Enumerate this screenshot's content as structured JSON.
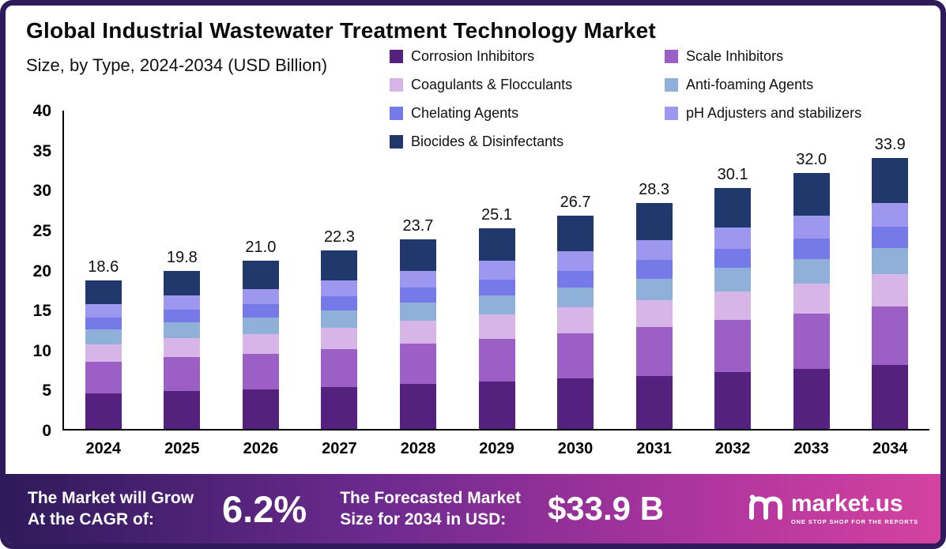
{
  "title": "Global Industrial Wastewater Treatment Technology Market",
  "subtitle": "Size, by Type, 2024-2034 (USD Billion)",
  "chart_data": {
    "type": "bar",
    "stacked": true,
    "title": "Global Industrial Wastewater Treatment Technology Market Size, by Type, 2024-2034 (USD Billion)",
    "categories": [
      "2024",
      "2025",
      "2026",
      "2027",
      "2028",
      "2029",
      "2030",
      "2031",
      "2032",
      "2033",
      "2034"
    ],
    "totals": [
      "18.6",
      "19.8",
      "21.0",
      "22.3",
      "23.7",
      "25.1",
      "26.7",
      "28.3",
      "30.1",
      "32.0",
      "33.9"
    ],
    "series": [
      {
        "name": "Corrosion Inhibitors",
        "color": "#54217e",
        "values": [
          4.4,
          4.7,
          4.9,
          5.2,
          5.6,
          5.9,
          6.3,
          6.6,
          7.1,
          7.5,
          8.0
        ]
      },
      {
        "name": "Scale Inhibitors",
        "color": "#9c5fc6",
        "values": [
          4.0,
          4.3,
          4.5,
          4.8,
          5.1,
          5.4,
          5.7,
          6.1,
          6.5,
          6.9,
          7.3
        ]
      },
      {
        "name": "Coagulants & Flocculants",
        "color": "#d7b5e6",
        "values": [
          2.2,
          2.4,
          2.5,
          2.7,
          2.8,
          3.0,
          3.2,
          3.4,
          3.6,
          3.8,
          4.1
        ]
      },
      {
        "name": "Anti-foaming Agents",
        "color": "#8fb1d9",
        "values": [
          1.8,
          1.9,
          2.0,
          2.1,
          2.3,
          2.4,
          2.5,
          2.7,
          2.9,
          3.0,
          3.2
        ]
      },
      {
        "name": "Chelating Agents",
        "color": "#7679e8",
        "values": [
          1.5,
          1.6,
          1.7,
          1.8,
          1.9,
          2.0,
          2.1,
          2.3,
          2.4,
          2.6,
          2.7
        ]
      },
      {
        "name": "pH Adjusters and stabilizers",
        "color": "#9e97f0",
        "values": [
          1.7,
          1.8,
          1.9,
          2.0,
          2.1,
          2.3,
          2.4,
          2.5,
          2.7,
          2.9,
          3.0
        ]
      },
      {
        "name": "Biocides & Disinfectants",
        "color": "#20386b",
        "values": [
          3.0,
          3.1,
          3.5,
          3.7,
          3.9,
          4.1,
          4.5,
          4.7,
          4.9,
          5.3,
          5.6
        ]
      }
    ],
    "ylim": [
      0,
      40
    ],
    "yticks": [
      0,
      5,
      10,
      15,
      20,
      25,
      30,
      35,
      40
    ],
    "grid": false,
    "legend_position": "top-right"
  },
  "footer": {
    "cagr_label_line1": "The Market will Grow",
    "cagr_label_line2": "At the CAGR of:",
    "cagr_value": "6.2%",
    "forecast_label_line1": "The Forecasted Market",
    "forecast_label_line2": "Size for 2034 in USD:",
    "forecast_value": "$33.9 B",
    "brand": "market.us",
    "brand_tagline": "One Stop Shop For The Reports"
  },
  "colors": {
    "card_border": "#2f1a5b",
    "footer_gradient_start": "#2f1a5b",
    "footer_gradient_end": "#d4429f",
    "axis": "#000000"
  }
}
